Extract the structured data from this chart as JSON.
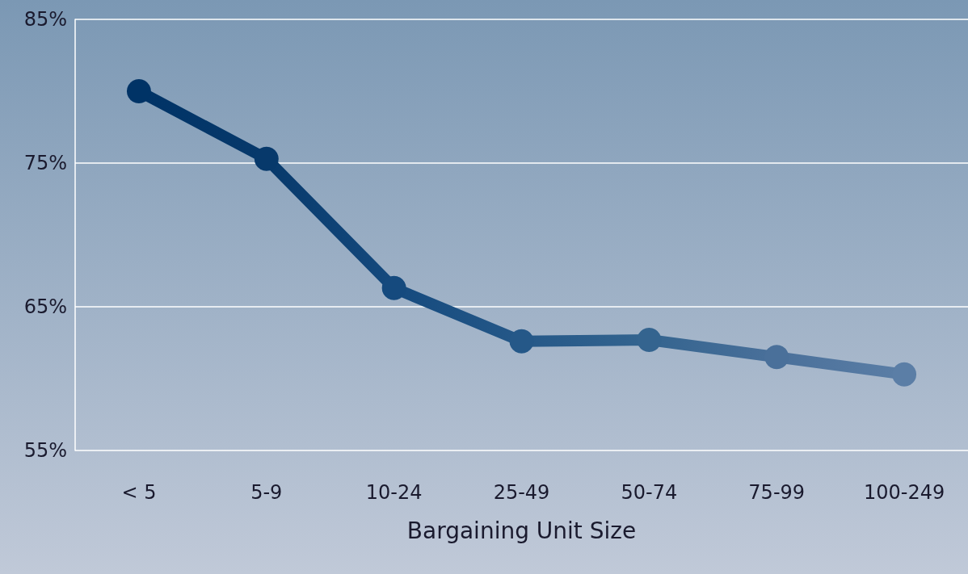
{
  "chart_data": {
    "type": "line",
    "xlabel": "Bargaining Unit Size",
    "categories": [
      "< 5",
      "5-9",
      "10-24",
      "25-49",
      "50-74",
      "75-99",
      "100-249"
    ],
    "series": [
      {
        "colors": [
          "#003366",
          "#07396b",
          "#154a7e",
          "#255888",
          "#34648f",
          "#4a709a",
          "#5b7ea6"
        ],
        "values": [
          80,
          75.3,
          66.3,
          62.6,
          62.7,
          61.5,
          60.3
        ]
      }
    ],
    "ylim": [
      55,
      85
    ],
    "yticks": [
      {
        "value": 55,
        "label": "55%"
      },
      {
        "value": 65,
        "label": "65%"
      },
      {
        "value": 75,
        "label": "75%"
      },
      {
        "value": 85,
        "label": "85%"
      }
    ],
    "grid": "y",
    "marker": "circle",
    "line_style": "solid"
  }
}
